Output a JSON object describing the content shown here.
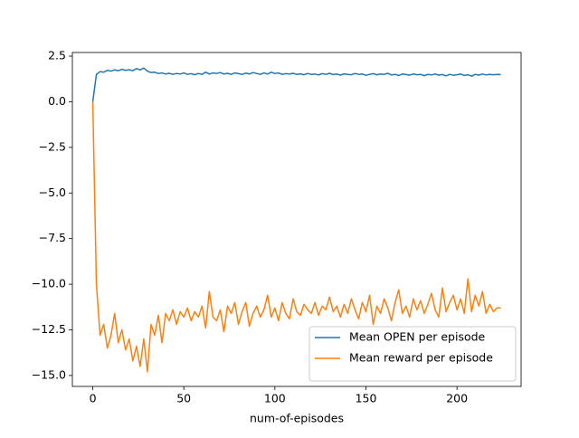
{
  "chart_data": {
    "type": "line",
    "xlabel": "num-of-episodes",
    "x": [
      0,
      2,
      4,
      6,
      8,
      10,
      12,
      14,
      16,
      18,
      20,
      22,
      24,
      26,
      28,
      30,
      32,
      34,
      36,
      38,
      40,
      42,
      44,
      46,
      48,
      50,
      52,
      54,
      56,
      58,
      60,
      62,
      64,
      66,
      68,
      70,
      72,
      74,
      76,
      78,
      80,
      82,
      84,
      86,
      88,
      90,
      92,
      94,
      96,
      98,
      100,
      102,
      104,
      106,
      108,
      110,
      112,
      114,
      116,
      118,
      120,
      122,
      124,
      126,
      128,
      130,
      132,
      134,
      136,
      138,
      140,
      142,
      144,
      146,
      148,
      150,
      152,
      154,
      156,
      158,
      160,
      162,
      164,
      166,
      168,
      170,
      172,
      174,
      176,
      178,
      180,
      182,
      184,
      186,
      188,
      190,
      192,
      194,
      196,
      198,
      200,
      202,
      204,
      206,
      208,
      210,
      212,
      214,
      216,
      218,
      220,
      222,
      224
    ],
    "series": [
      {
        "name": "Mean OPEN per episode",
        "color": "#1f77b4",
        "values": [
          0,
          1.5,
          1.65,
          1.62,
          1.72,
          1.68,
          1.75,
          1.7,
          1.78,
          1.72,
          1.76,
          1.7,
          1.82,
          1.74,
          1.85,
          1.68,
          1.6,
          1.62,
          1.55,
          1.58,
          1.52,
          1.56,
          1.5,
          1.55,
          1.52,
          1.58,
          1.5,
          1.54,
          1.48,
          1.55,
          1.5,
          1.62,
          1.52,
          1.58,
          1.55,
          1.6,
          1.52,
          1.56,
          1.5,
          1.58,
          1.54,
          1.5,
          1.57,
          1.52,
          1.6,
          1.55,
          1.5,
          1.58,
          1.52,
          1.62,
          1.55,
          1.58,
          1.5,
          1.54,
          1.52,
          1.56,
          1.5,
          1.53,
          1.48,
          1.55,
          1.5,
          1.52,
          1.47,
          1.54,
          1.5,
          1.56,
          1.49,
          1.52,
          1.46,
          1.53,
          1.5,
          1.48,
          1.55,
          1.5,
          1.52,
          1.45,
          1.5,
          1.54,
          1.48,
          1.52,
          1.5,
          1.56,
          1.47,
          1.5,
          1.44,
          1.52,
          1.49,
          1.46,
          1.52,
          1.48,
          1.5,
          1.43,
          1.5,
          1.47,
          1.52,
          1.46,
          1.49,
          1.42,
          1.5,
          1.45,
          1.48,
          1.52,
          1.44,
          1.48,
          1.4,
          1.5,
          1.46,
          1.52,
          1.47,
          1.5,
          1.48,
          1.5,
          1.49
        ]
      },
      {
        "name": "Mean reward per episode",
        "color": "#ff7f0e",
        "values": [
          0,
          -10,
          -12.8,
          -12.2,
          -13.5,
          -12.8,
          -11.6,
          -13.2,
          -12.5,
          -13.6,
          -13.0,
          -14.2,
          -13.4,
          -14.5,
          -13.0,
          -14.8,
          -12.2,
          -12.8,
          -11.7,
          -13.2,
          -11.6,
          -12.0,
          -11.4,
          -12.2,
          -11.5,
          -11.8,
          -11.3,
          -12.0,
          -11.5,
          -11.8,
          -11.2,
          -12.4,
          -10.4,
          -11.8,
          -12.0,
          -11.4,
          -12.6,
          -11.2,
          -11.6,
          -11.0,
          -12.2,
          -11.5,
          -11.0,
          -12.3,
          -11.6,
          -11.2,
          -11.8,
          -11.4,
          -10.6,
          -11.8,
          -11.3,
          -12.0,
          -11.0,
          -11.6,
          -11.9,
          -10.8,
          -11.5,
          -11.7,
          -11.1,
          -11.4,
          -11.6,
          -11.0,
          -11.7,
          -11.2,
          -11.4,
          -10.7,
          -11.5,
          -11.2,
          -11.8,
          -11.1,
          -11.6,
          -10.8,
          -11.4,
          -11.9,
          -11.0,
          -11.5,
          -10.6,
          -12.2,
          -11.2,
          -11.6,
          -10.8,
          -11.3,
          -12.0,
          -11.0,
          -10.3,
          -11.6,
          -11.2,
          -11.8,
          -10.8,
          -11.4,
          -10.9,
          -11.6,
          -11.1,
          -10.5,
          -11.4,
          -11.8,
          -10.2,
          -11.5,
          -11.0,
          -10.6,
          -11.4,
          -10.8,
          -11.6,
          -9.7,
          -11.5,
          -10.6,
          -11.2,
          -10.4,
          -11.6,
          -11.1,
          -11.5,
          -11.3,
          -11.3
        ]
      }
    ],
    "xlim": [
      -11.2,
      235.2
    ],
    "xticks": [
      0,
      50,
      100,
      150,
      200
    ],
    "ylim": [
      -15.6,
      2.7
    ],
    "yticks": [
      2.5,
      {
        "value": 0,
        "label": "0.0"
      },
      {
        "value": -2.5,
        "label": "−2.5"
      },
      {
        "value": -5,
        "label": "−5.0"
      },
      {
        "value": -7.5,
        "label": "−7.5"
      },
      {
        "value": -10,
        "label": "−10.0"
      },
      {
        "value": -12.5,
        "label": "−12.5"
      },
      {
        "value": -15,
        "label": "−15.0"
      }
    ],
    "legend": "lower right",
    "grid": false
  }
}
